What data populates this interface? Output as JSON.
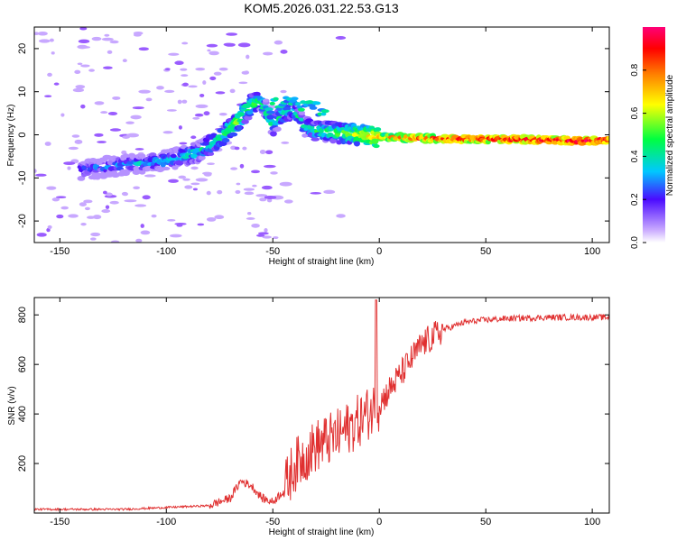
{
  "title": "KOM5.2026.031.22.53.G13",
  "chart_data": [
    {
      "type": "heatmap",
      "xlabel": "Height of straight line (km)",
      "ylabel": "Frequency (Hz)",
      "xlim": [
        -162,
        108
      ],
      "ylim": [
        -25,
        25
      ],
      "xticks": [
        -150,
        -100,
        -50,
        0,
        50,
        100
      ],
      "yticks": [
        -20,
        -10,
        0,
        10,
        20
      ],
      "colorbar": {
        "label": "Normalized spectral amplitude",
        "range": [
          0,
          1
        ],
        "ticks": [
          0.0,
          0.2,
          0.4,
          0.6,
          0.8
        ]
      },
      "ridge": {
        "x": [
          -140,
          -120,
          -100,
          -85,
          -75,
          -65,
          -60,
          -55,
          -50,
          -45,
          -40,
          -35,
          -30,
          -20,
          -10,
          0,
          20,
          40,
          60,
          80,
          95,
          108
        ],
        "y": [
          -8,
          -7,
          -6,
          -4,
          -1,
          4,
          7,
          8,
          2,
          5,
          6,
          2,
          1,
          0.5,
          0,
          -0.5,
          -0.8,
          -1,
          -1,
          -1.2,
          -1.5,
          -1.2
        ],
        "amplitude": [
          0.25,
          0.3,
          0.35,
          0.4,
          0.45,
          0.55,
          0.5,
          0.45,
          0.4,
          0.45,
          0.4,
          0.4,
          0.45,
          0.5,
          0.6,
          0.75,
          0.85,
          0.9,
          0.92,
          0.95,
          0.98,
          0.9
        ]
      }
    },
    {
      "type": "line",
      "xlabel": "Height of straight line (km)",
      "ylabel": "SNR (v/v)",
      "xlim": [
        -162,
        108
      ],
      "ylim": [
        0,
        870
      ],
      "xticks": [
        -150,
        -100,
        -50,
        0,
        50,
        100
      ],
      "yticks": [
        200,
        400,
        600,
        800
      ],
      "color": "#e03030",
      "trend": {
        "x": [
          -162,
          -120,
          -80,
          -70,
          -65,
          -60,
          -55,
          -50,
          -45,
          -40,
          -30,
          -20,
          -10,
          0,
          10,
          20,
          30,
          40,
          50,
          60,
          80,
          100,
          108
        ],
        "y": [
          15,
          15,
          30,
          60,
          130,
          110,
          60,
          45,
          90,
          190,
          270,
          310,
          370,
          440,
          560,
          680,
          740,
          770,
          780,
          785,
          790,
          790,
          790
        ]
      }
    }
  ]
}
